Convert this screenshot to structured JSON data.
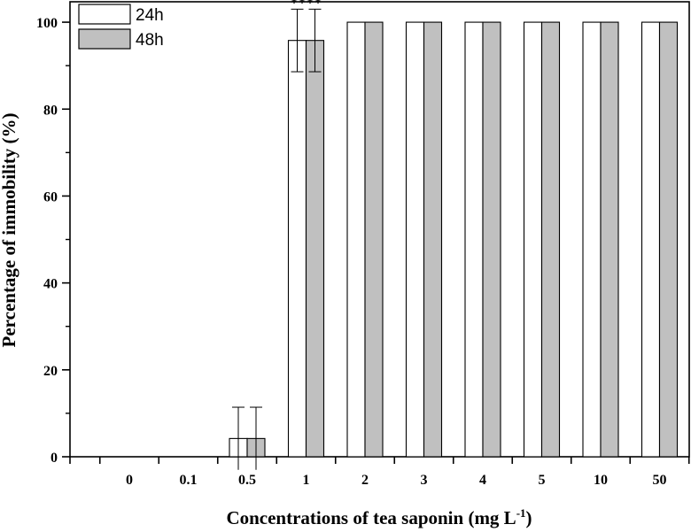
{
  "chart_data": {
    "type": "bar",
    "categories": [
      "0",
      "0.1",
      "0.5",
      "1",
      "2",
      "3",
      "4",
      "5",
      "10",
      "50"
    ],
    "series": [
      {
        "name": "24h",
        "color": "#ffffff",
        "values": [
          0,
          0,
          4.2,
          95.8,
          100,
          100,
          100,
          100,
          100,
          100
        ],
        "errors": [
          0,
          0,
          7.2,
          7.2,
          0,
          0,
          0,
          0,
          0,
          0
        ]
      },
      {
        "name": "48h",
        "color": "#c0c0c0",
        "values": [
          0,
          0,
          4.2,
          95.8,
          100,
          100,
          100,
          100,
          100,
          100
        ],
        "errors": [
          0,
          0,
          7.2,
          7.2,
          0,
          0,
          0,
          0,
          0,
          0
        ]
      }
    ],
    "xlabel": "Concentrations of tea saponin (mg L",
    "xlabel_superscript": "-1",
    "xlabel_suffix": ")",
    "ylabel": "Percentage of immobility  (%)",
    "ylim": [
      0,
      100
    ],
    "yticks": [
      0,
      20,
      40,
      60,
      80,
      100
    ],
    "legend_position": "top-left",
    "grid": false,
    "annotations": [
      {
        "category": "1",
        "text": "****"
      }
    ]
  }
}
